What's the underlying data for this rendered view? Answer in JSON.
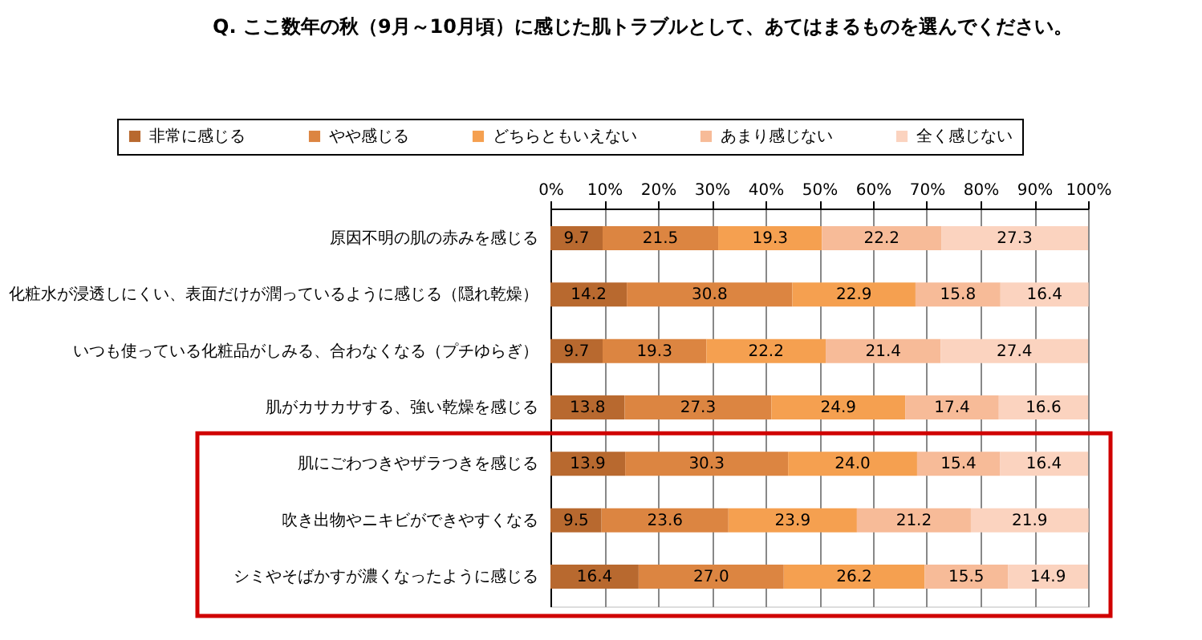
{
  "chart_data": {
    "type": "bar",
    "orientation": "horizontal",
    "stacked": true,
    "title": "Q. ここ数年の秋（9月～10月頃）に感じた肌トラブルとして、あてはまるものを選んでください。",
    "categories": [
      "原因不明の肌の赤みを感じる",
      "化粧水が浸透しにくい、表面だけが潤っているように感じる（隠れ乾燥）",
      "いつも使っている化粧品がしみる、合わなくなる（プチゆらぎ）",
      "肌がカサカサする、強い乾燥を感じる",
      "肌にごわつきやザラつきを感じる",
      "吹き出物やニキビができやすくなる",
      "シミやそばかすが濃くなったように感じる"
    ],
    "series": [
      {
        "name": "非常に感じる",
        "color": "#b8692f",
        "values": [
          9.7,
          14.2,
          9.7,
          13.8,
          13.9,
          9.5,
          16.4
        ],
        "value_labels": [
          "9.7",
          "14.2",
          "9.7",
          "13.8",
          "13.9",
          "9.5",
          "16.4"
        ]
      },
      {
        "name": "やや感じる",
        "color": "#dc8541",
        "values": [
          21.5,
          30.8,
          19.3,
          27.3,
          30.3,
          23.6,
          27.0
        ],
        "value_labels": [
          "21.5",
          "30.8",
          "19.3",
          "27.3",
          "30.3",
          "23.6",
          "27.0"
        ]
      },
      {
        "name": "どちらともいえない",
        "color": "#f5a050",
        "values": [
          19.3,
          22.9,
          22.2,
          24.9,
          24.0,
          23.9,
          26.2
        ],
        "value_labels": [
          "19.3",
          "22.9",
          "22.2",
          "24.9",
          "24.0",
          "23.9",
          "26.2"
        ]
      },
      {
        "name": "あまり感じない",
        "color": "#f7bb98",
        "values": [
          22.2,
          15.8,
          21.4,
          17.4,
          15.4,
          21.2,
          15.5
        ],
        "value_labels": [
          "22.2",
          "15.8",
          "21.4",
          "17.4",
          "15.4",
          "21.2",
          "15.5"
        ]
      },
      {
        "name": "全く感じない",
        "color": "#fbd3bf",
        "values": [
          27.3,
          16.4,
          27.4,
          16.6,
          16.4,
          21.9,
          14.9
        ],
        "value_labels": [
          "27.3",
          "16.4",
          "27.4",
          "16.6",
          "16.4",
          "21.9",
          "14.9"
        ]
      }
    ],
    "xlim": [
      0,
      100
    ],
    "xticks": [
      {
        "value": 0,
        "label": "0%"
      },
      {
        "value": 10,
        "label": "10%"
      },
      {
        "value": 20,
        "label": "20%"
      },
      {
        "value": 30,
        "label": "30%"
      },
      {
        "value": 40,
        "label": "40%"
      },
      {
        "value": 50,
        "label": "50%"
      },
      {
        "value": 60,
        "label": "60%"
      },
      {
        "value": 70,
        "label": "70%"
      },
      {
        "value": 80,
        "label": "80%"
      },
      {
        "value": 90,
        "label": "90%"
      },
      {
        "value": 100,
        "label": "100%"
      }
    ],
    "grid": "x",
    "legend": "top"
  }
}
